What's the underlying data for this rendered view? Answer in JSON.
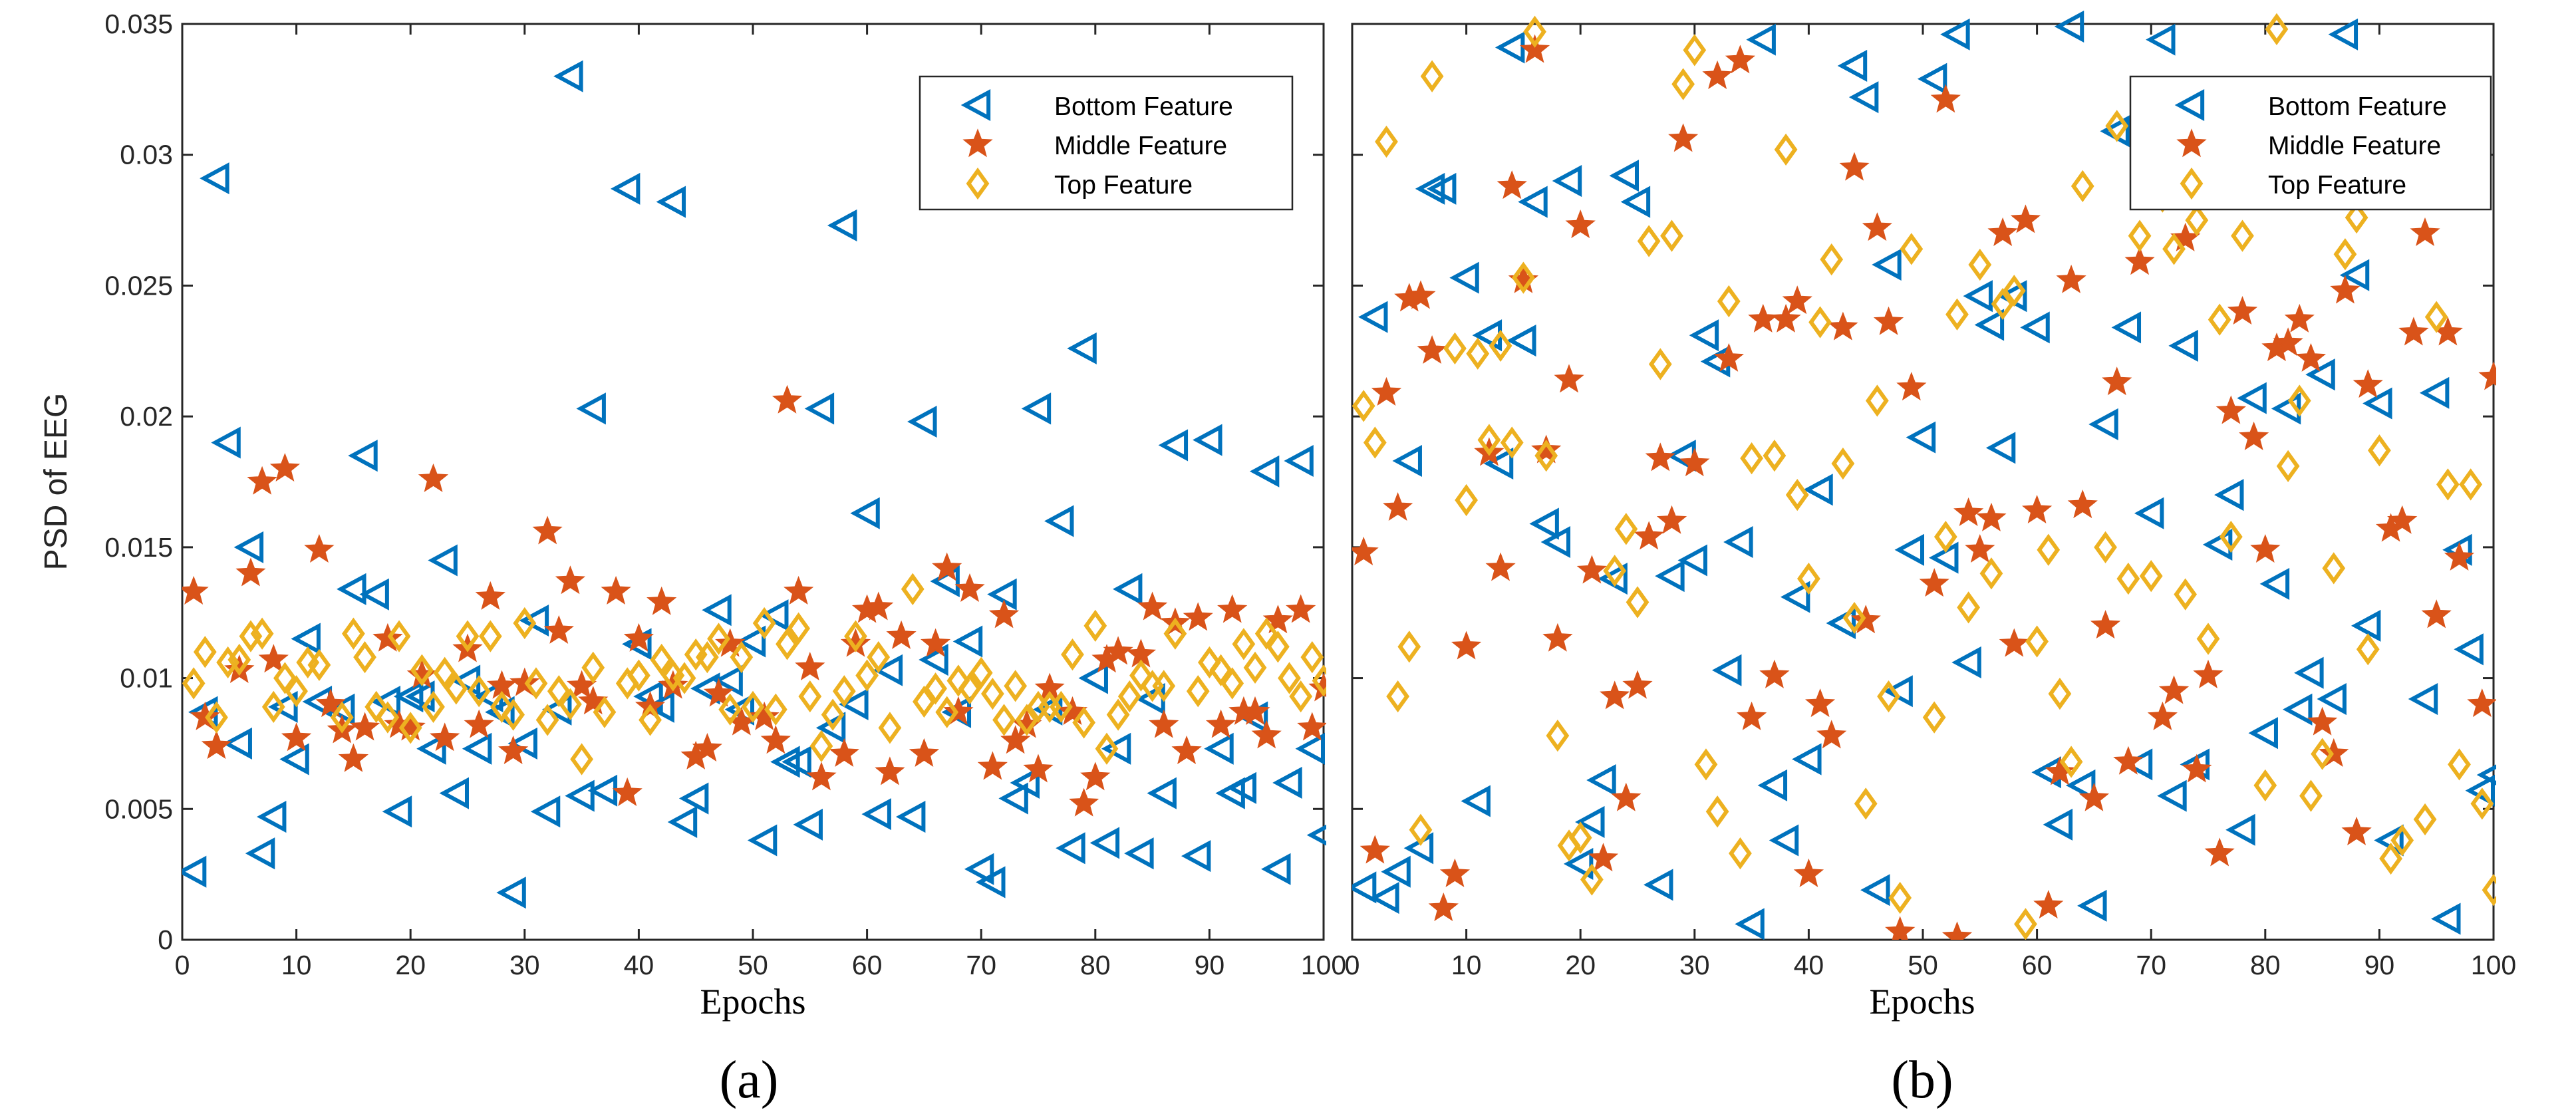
{
  "chart_data": [
    {
      "type": "scatter",
      "panel_label": "(a)",
      "xlabel": "Epochs",
      "ylabel": "PSD of EEG",
      "xlim": [
        0,
        100
      ],
      "ylim": [
        0,
        0.035
      ],
      "xticks": [
        "0",
        "10",
        "20",
        "30",
        "40",
        "50",
        "60",
        "70",
        "80",
        "90",
        "100"
      ],
      "yticks": [
        "0",
        "0.005",
        "0.01",
        "0.015",
        "0.02",
        "0.025",
        "0.03",
        "0.035"
      ],
      "legend_position": "top-right",
      "series": [
        {
          "name": "Bottom Feature",
          "marker": "triangle-left",
          "color": "#0072BD",
          "y": [
            0.0026,
            0.0087,
            0.0291,
            0.019,
            0.0075,
            0.015,
            0.0033,
            0.0047,
            0.0089,
            0.0069,
            0.0115,
            0.0091,
            0.0088,
            0.0134,
            0.0185,
            0.0132,
            0.0091,
            0.0049,
            0.0093,
            0.0093,
            0.0073,
            0.0145,
            0.0056,
            0.0099,
            0.0073,
            0.0093,
            0.0087,
            0.0018,
            0.0075,
            0.0122,
            0.0049,
            0.0088,
            0.033,
            0.0055,
            0.0203,
            0.0057,
            0.0287,
            0.0113,
            0.0093,
            0.0089,
            0.0282,
            0.0045,
            0.0054,
            0.0096,
            0.0126,
            0.0099,
            0.0088,
            0.0114,
            0.0038,
            0.0124,
            0.0068,
            0.0068,
            0.0044,
            0.0203,
            0.0081,
            0.0273,
            0.009,
            0.0163,
            0.0048,
            0.0103,
            0.0047,
            0.0198,
            0.0107,
            0.0137,
            0.0087,
            0.0114,
            0.0027,
            0.0022,
            0.0132,
            0.0054,
            0.006,
            0.0203,
            0.0088,
            0.016,
            0.0035,
            0.0226,
            0.01,
            0.0037,
            0.0073,
            0.0134,
            0.0033,
            0.0092,
            0.0056,
            0.0189,
            0.0032,
            0.0191,
            0.0073,
            0.0056,
            0.0058,
            0.0085,
            0.0179,
            0.0027,
            0.006,
            0.0183,
            0.0073,
            0.004
          ]
        },
        {
          "name": "Middle Feature",
          "marker": "star",
          "color": "#D95319",
          "y": [
            0.0133,
            0.0085,
            0.0074,
            0.0103,
            0.014,
            0.0175,
            0.0107,
            0.018,
            0.0077,
            0.0149,
            0.009,
            0.008,
            0.0069,
            0.0081,
            0.0115,
            0.0082,
            0.0081,
            0.0101,
            0.0176,
            0.0077,
            0.0111,
            0.0082,
            0.0131,
            0.0097,
            0.0072,
            0.0098,
            0.0156,
            0.0118,
            0.0137,
            0.0097,
            0.0091,
            0.0133,
            0.0056,
            0.0115,
            0.0089,
            0.0129,
            0.0097,
            0.007,
            0.0073,
            0.0094,
            0.0113,
            0.0083,
            0.0085,
            0.0076,
            0.0206,
            0.0133,
            0.0104,
            0.0062,
            0.0071,
            0.0113,
            0.0126,
            0.0127,
            0.0064,
            0.0116,
            0.0071,
            0.0113,
            0.0142,
            0.0087,
            0.0134,
            0.0066,
            0.0124,
            0.0076,
            0.0082,
            0.0065,
            0.0096,
            0.0087,
            0.0052,
            0.0062,
            0.0107,
            0.011,
            0.0109,
            0.0127,
            0.0082,
            0.0121,
            0.0072,
            0.0123,
            0.0082,
            0.0126,
            0.0087,
            0.0087,
            0.0078,
            0.0122,
            0.0126,
            0.0081,
            0.0096
          ]
        },
        {
          "name": "Top Feature",
          "marker": "diamond",
          "color": "#EDB120",
          "y": [
            0.0098,
            0.011,
            0.0085,
            0.0106,
            0.0107,
            0.0116,
            0.0117,
            0.0089,
            0.01,
            0.0095,
            0.0106,
            0.0105,
            0.0085,
            0.0117,
            0.0108,
            0.0089,
            0.0085,
            0.0116,
            0.0081,
            0.0103,
            0.0089,
            0.0102,
            0.0096,
            0.0116,
            0.0095,
            0.0116,
            0.0089,
            0.0086,
            0.0121,
            0.0098,
            0.0084,
            0.0095,
            0.009,
            0.0069,
            0.0104,
            0.0087,
            0.0098,
            0.0101,
            0.0084,
            0.0107,
            0.0101,
            0.01,
            0.0109,
            0.0108,
            0.0115,
            0.0088,
            0.0108,
            0.0089,
            0.0121,
            0.0088,
            0.0113,
            0.0119,
            0.0093,
            0.0074,
            0.0086,
            0.0095,
            0.0116,
            0.0101,
            0.0108,
            0.0081,
            0.0134,
            0.0091,
            0.0096,
            0.0087,
            0.0099,
            0.0096,
            0.0102,
            0.0094,
            0.0084,
            0.0097,
            0.0084,
            0.0089,
            0.0089,
            0.0089,
            0.0109,
            0.0083,
            0.012,
            0.0073,
            0.0086,
            0.0093,
            0.0101,
            0.0097,
            0.0097,
            0.0117,
            0.0095,
            0.0106,
            0.0103,
            0.0098,
            0.0113,
            0.0104,
            0.0117,
            0.0112,
            0.01,
            0.0093,
            0.0108,
            0.0099
          ]
        }
      ]
    },
    {
      "type": "scatter",
      "panel_label": "(b)",
      "xlabel": "Epochs",
      "ylabel": "",
      "xlim": [
        0,
        100
      ],
      "ylim": [
        0,
        0.035
      ],
      "xticks": [
        "0",
        "10",
        "20",
        "30",
        "40",
        "50",
        "60",
        "70",
        "80",
        "90",
        "100"
      ],
      "yticks": [],
      "legend_position": "top-right",
      "series": [
        {
          "name": "Bottom Feature",
          "marker": "triangle-left",
          "color": "#0072BD",
          "y": [
            0.002,
            0.0238,
            0.0016,
            0.0026,
            0.0183,
            0.0035,
            0.0287,
            0.0287,
            0.0253,
            0.0053,
            0.0231,
            0.0182,
            0.0341,
            0.0229,
            0.0282,
            0.0159,
            0.0152,
            0.029,
            0.0029,
            0.0045,
            0.0061,
            0.0138,
            0.0292,
            0.0282,
            0.0021,
            0.0139,
            0.0185,
            0.0145,
            0.0231,
            0.0221,
            0.0103,
            0.0152,
            0.0006,
            0.0344,
            0.0059,
            0.0038,
            0.0131,
            0.0069,
            0.0172,
            0.0121,
            0.0334,
            0.0322,
            0.0019,
            0.0258,
            0.0095,
            0.0149,
            0.0192,
            0.0329,
            0.0146,
            0.0346,
            0.0106,
            0.0246,
            0.0235,
            0.0188,
            0.0246,
            0.0234,
            0.0064,
            0.0044,
            0.0349,
            0.0059,
            0.0013,
            0.0197,
            0.0309,
            0.0234,
            0.0067,
            0.0163,
            0.0344,
            0.0055,
            0.0227,
            0.0067,
            0.0151,
            0.017,
            0.0042,
            0.0207,
            0.0079,
            0.0136,
            0.0203,
            0.0088,
            0.0102,
            0.0216,
            0.0092,
            0.0346,
            0.0254,
            0.012,
            0.0205,
            0.0038,
            0.0287,
            0.0092,
            0.0209,
            0.0008,
            0.0149,
            0.0111,
            0.0057,
            0.0063
          ]
        },
        {
          "name": "Middle Feature",
          "marker": "star",
          "color": "#D95319",
          "y": [
            0.0148,
            0.0034,
            0.0209,
            0.0165,
            0.0245,
            0.0246,
            0.0225,
            0.0012,
            0.0025,
            0.0112,
            0.0186,
            0.0142,
            0.0288,
            0.0252,
            0.034,
            0.0187,
            0.0115,
            0.0214,
            0.0273,
            0.0141,
            0.0031,
            0.0093,
            0.0054,
            0.0097,
            0.0154,
            0.0184,
            0.016,
            0.0306,
            0.0182,
            0.033,
            0.0222,
            0.0336,
            0.0085,
            0.0237,
            0.0101,
            0.0237,
            0.0244,
            0.0025,
            0.009,
            0.0078,
            0.0234,
            0.0295,
            0.0122,
            0.0272,
            0.0236,
            0.0003,
            0.0211,
            0.0136,
            0.0321,
            0.0001,
            0.0163,
            0.0149,
            0.0161,
            0.027,
            0.0113,
            0.0275,
            0.0164,
            0.0013,
            0.0064,
            0.0252,
            0.0166,
            0.0054,
            0.012,
            0.0213,
            0.0068,
            0.0259,
            0.0085,
            0.0095,
            0.0268,
            0.0065,
            0.0101,
            0.0033,
            0.0202,
            0.024,
            0.0192,
            0.0149,
            0.0226,
            0.0228,
            0.0237,
            0.0222,
            0.0083,
            0.0071,
            0.0248,
            0.0041,
            0.0212,
            0.0157,
            0.016,
            0.0232,
            0.027,
            0.0124,
            0.0232,
            0.0146,
            0.0292,
            0.009,
            0.0215
          ]
        },
        {
          "name": "Top Feature",
          "marker": "diamond",
          "color": "#EDB120",
          "y": [
            0.0204,
            0.019,
            0.0305,
            0.0093,
            0.0112,
            0.0042,
            0.033,
            0.0226,
            0.0168,
            0.0224,
            0.0191,
            0.0227,
            0.019,
            0.0253,
            0.0347,
            0.0185,
            0.0078,
            0.0036,
            0.0039,
            0.0023,
            0.0141,
            0.0157,
            0.0129,
            0.0267,
            0.022,
            0.0269,
            0.0327,
            0.034,
            0.0067,
            0.0049,
            0.0244,
            0.0033,
            0.0184,
            0.0185,
            0.0302,
            0.017,
            0.0138,
            0.0236,
            0.026,
            0.0182,
            0.0123,
            0.0052,
            0.0206,
            0.0093,
            0.0016,
            0.0264,
            0.0085,
            0.0154,
            0.0239,
            0.0127,
            0.0258,
            0.014,
            0.0243,
            0.0248,
            0.0006,
            0.0114,
            0.0149,
            0.0094,
            0.0068,
            0.0288,
            0.015,
            0.0311,
            0.0138,
            0.0269,
            0.0139,
            0.0284,
            0.0264,
            0.0132,
            0.0275,
            0.0115,
            0.0237,
            0.0154,
            0.0269,
            0.0059,
            0.0348,
            0.0181,
            0.0206,
            0.0055,
            0.0071,
            0.0142,
            0.0262,
            0.0276,
            0.0111,
            0.0187,
            0.0031,
            0.0038,
            0.0046,
            0.0238,
            0.0174,
            0.0067,
            0.0174,
            0.0052,
            0.0019
          ]
        }
      ]
    }
  ]
}
